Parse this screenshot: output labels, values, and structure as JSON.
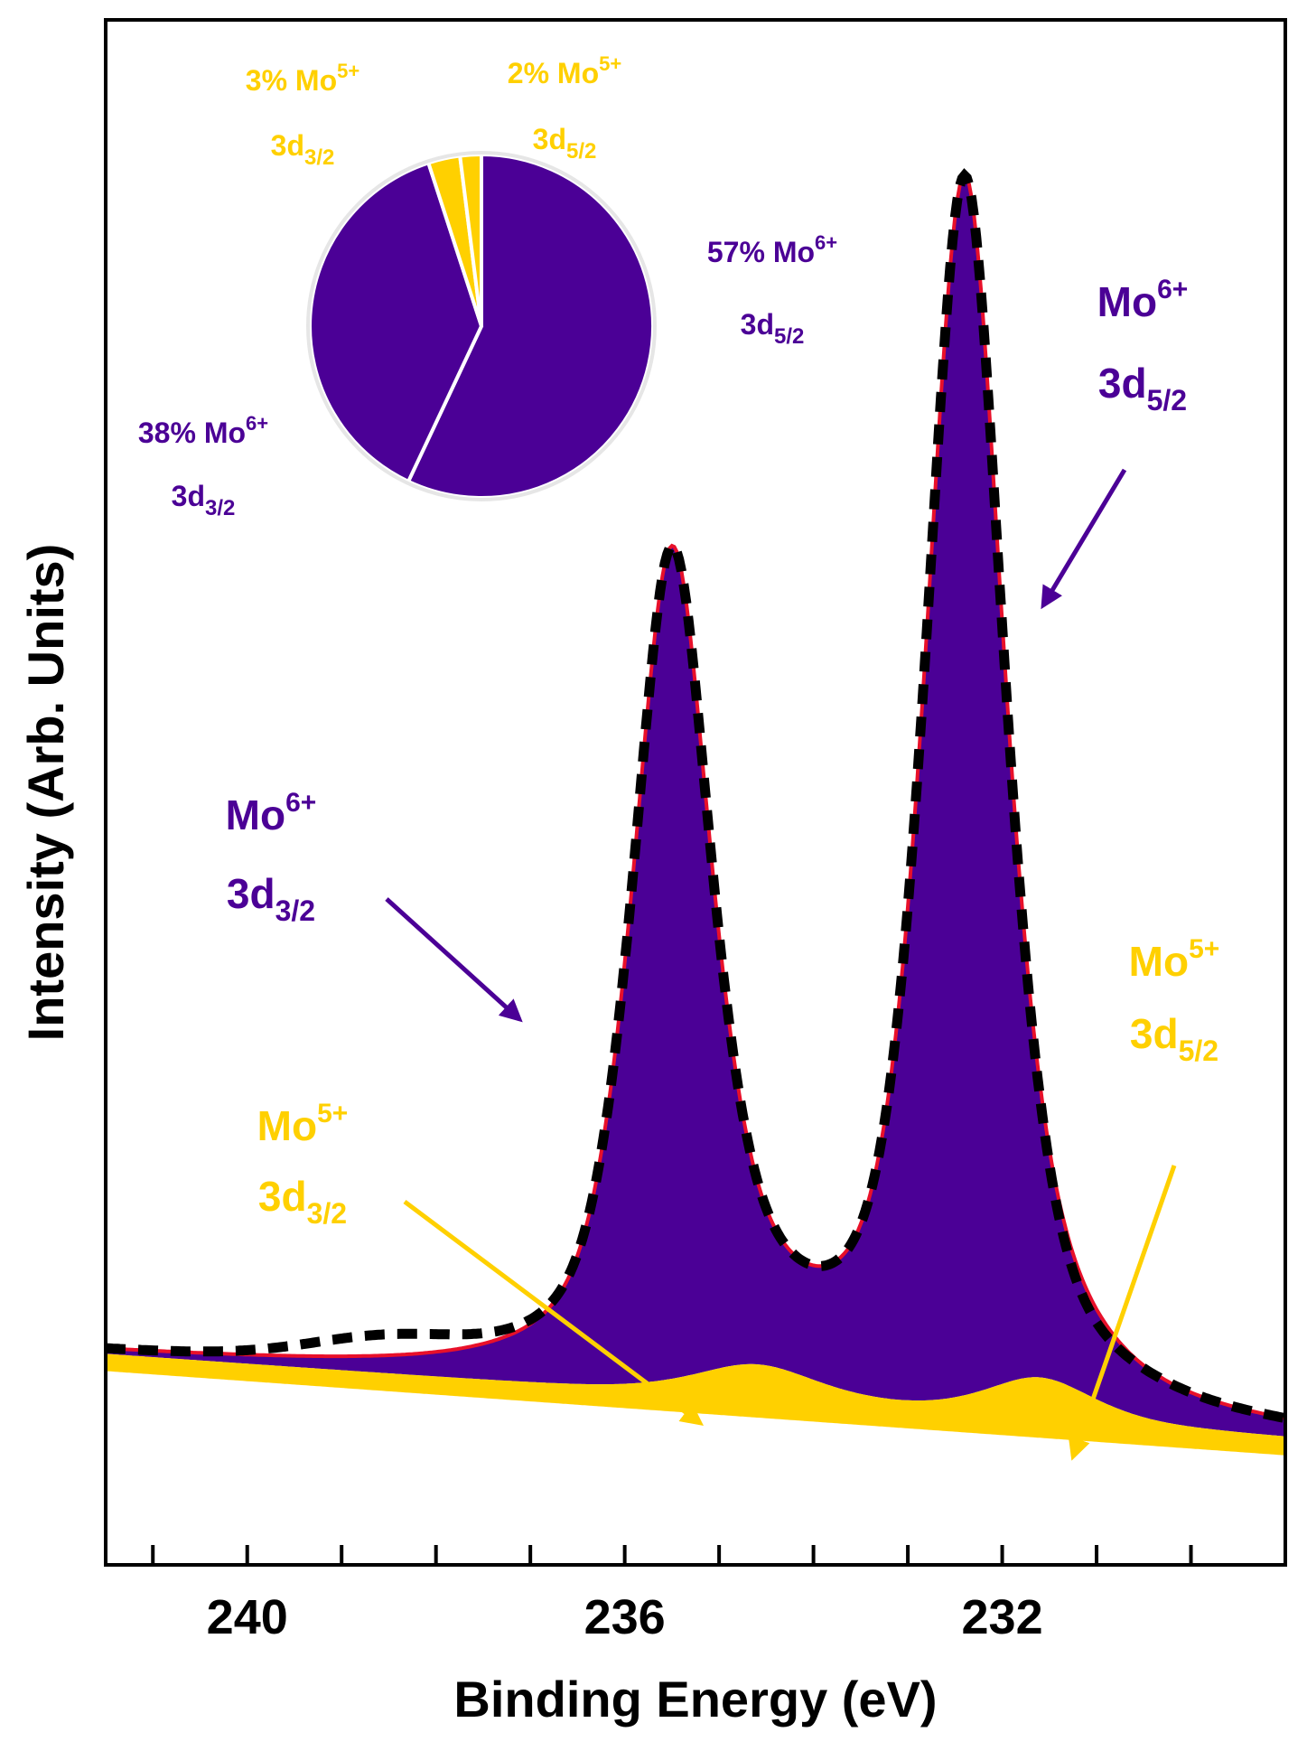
{
  "chart_data": {
    "type": "area",
    "xlabel": "Binding Energy (eV)",
    "ylabel": "Intensity (Arb. Units)",
    "xlim": [
      241.5,
      229.0
    ],
    "x_reversed": true,
    "ylim": [
      -0.05,
      1.05
    ],
    "x_ticks": [
      "240",
      "236",
      "232"
    ],
    "x_tick_values": [
      240,
      236,
      232
    ],
    "x_minor_step": 1,
    "colors": {
      "mo6": "#4B0096",
      "mo5": "#FFD000",
      "fit": "#E8102A",
      "data": "#000000"
    },
    "components": [
      {
        "name": "Mo6+ 3d3/2",
        "center": 235.5,
        "height": 0.58,
        "width": 0.5
      },
      {
        "name": "Mo6+ 3d5/2",
        "center": 232.4,
        "height": 0.86,
        "width": 0.5
      },
      {
        "name": "Mo5+ 3d3/2",
        "center": 234.6,
        "height": 0.025,
        "width": 0.8
      },
      {
        "name": "Mo5+ 3d5/2",
        "center": 231.6,
        "height": 0.03,
        "width": 0.7
      }
    ],
    "background": {
      "left": 0.1,
      "right": 0.04
    },
    "series": [
      {
        "name": "Measured data",
        "style": "dashed black"
      },
      {
        "name": "Fit envelope",
        "style": "solid red"
      }
    ],
    "pie": {
      "slices": [
        {
          "label_pct": "57% Mo",
          "sup": "6+",
          "sub": "5/2",
          "value": 57,
          "state": "mo6"
        },
        {
          "label_pct": "38% Mo",
          "sup": "6+",
          "sub": "3/2",
          "value": 38,
          "state": "mo6"
        },
        {
          "label_pct": "3% Mo",
          "sup": "5+",
          "sub": "3/2",
          "value": 3,
          "state": "mo5"
        },
        {
          "label_pct": "2% Mo",
          "sup": "5+",
          "sub": "5/2",
          "value": 2,
          "state": "mo5"
        }
      ]
    },
    "annotations": [
      {
        "text": "Mo",
        "sup": "6+",
        "line2": "3d",
        "sub": "5/2",
        "state": "mo6"
      },
      {
        "text": "Mo",
        "sup": "6+",
        "line2": "3d",
        "sub": "3/2",
        "state": "mo6"
      },
      {
        "text": "Mo",
        "sup": "5+",
        "line2": "3d",
        "sub": "5/2",
        "state": "mo5"
      },
      {
        "text": "Mo",
        "sup": "5+",
        "line2": "3d",
        "sub": "3/2",
        "state": "mo5"
      }
    ]
  }
}
